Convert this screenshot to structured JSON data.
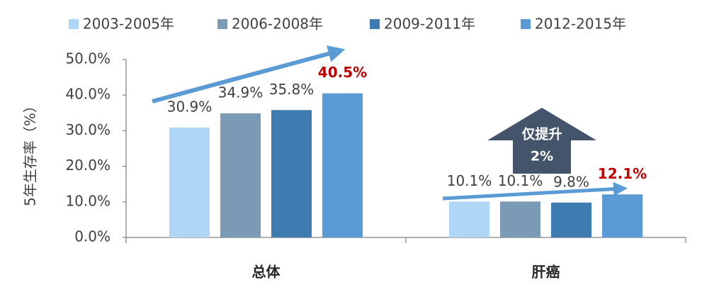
{
  "chart_data": {
    "type": "bar",
    "y_label": "5年生存率（%）",
    "categories": [
      "总体",
      "肝癌"
    ],
    "series": [
      {
        "name": "2003-2005年",
        "color": "#aed6f7",
        "values": [
          30.9,
          10.1
        ],
        "value_labels": [
          "30.9%",
          "10.1%"
        ]
      },
      {
        "name": "2006-2008年",
        "color": "#7b9ab6",
        "values": [
          34.9,
          10.1
        ],
        "value_labels": [
          "34.9%",
          "10.1%"
        ]
      },
      {
        "name": "2009-2011年",
        "color": "#3e7bb1",
        "values": [
          35.8,
          9.8
        ],
        "value_labels": [
          "35.8%",
          "9.8%"
        ]
      },
      {
        "name": "2012-2015年",
        "color": "#5b9bd5",
        "values": [
          40.5,
          12.1
        ],
        "value_labels": [
          "40.5%",
          "12.1%"
        ],
        "label_color": "#c00000"
      }
    ],
    "ylim": [
      0,
      50
    ],
    "yticks": [
      {
        "value": 0,
        "label": "0.0%"
      },
      {
        "value": 10,
        "label": "10.0%"
      },
      {
        "value": 20,
        "label": "20.0%"
      },
      {
        "value": 30,
        "label": "30.0%"
      },
      {
        "value": 40,
        "label": "40.0%"
      },
      {
        "value": 50,
        "label": "50.0%"
      }
    ],
    "grid": false,
    "legend": "top",
    "annotation": [
      "仅提升",
      "2%"
    ]
  }
}
